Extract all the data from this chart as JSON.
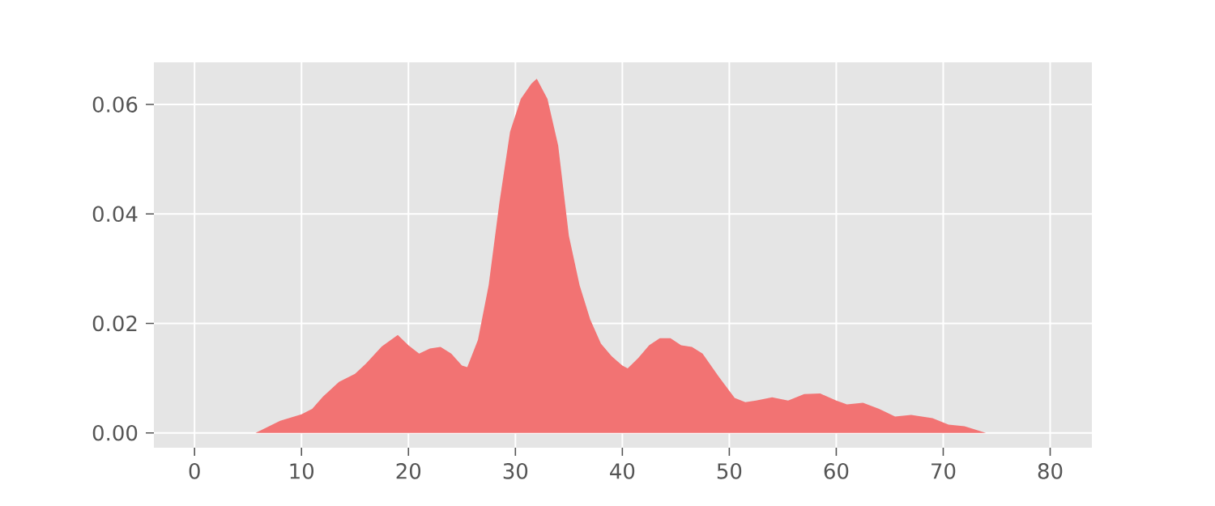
{
  "chart_data": {
    "type": "area",
    "color": "#f27373",
    "grid": true,
    "xlim": [
      -3.8,
      83.9
    ],
    "ylim": [
      -0.0027,
      0.0677
    ],
    "xticks": [
      0,
      10,
      20,
      30,
      40,
      50,
      60,
      70,
      80
    ],
    "yticks": [
      {
        "value": 0,
        "label": "0.00"
      },
      0.02,
      0.04,
      0.06
    ],
    "x": [
      5.7,
      8,
      10,
      11,
      12,
      13.5,
      15,
      16,
      17.5,
      19,
      20,
      21,
      22,
      23,
      24,
      25,
      25.5,
      26.5,
      27.5,
      28.5,
      29.5,
      30.5,
      31.5,
      32,
      33,
      34,
      35,
      36,
      37,
      38,
      39,
      40,
      40.5,
      41.5,
      42.5,
      43.5,
      44.5,
      45.5,
      46.5,
      47.5,
      49,
      50.5,
      51.5,
      52.5,
      54,
      55.5,
      57,
      58.5,
      60,
      61,
      62.5,
      64,
      65.5,
      67,
      69,
      70.5,
      72,
      74
    ],
    "values": [
      0,
      0.0022,
      0.0034,
      0.0044,
      0.0066,
      0.0093,
      0.0108,
      0.0126,
      0.0158,
      0.0179,
      0.016,
      0.0145,
      0.0154,
      0.0157,
      0.0145,
      0.0123,
      0.012,
      0.017,
      0.027,
      0.042,
      0.055,
      0.061,
      0.0638,
      0.0647,
      0.061,
      0.0525,
      0.036,
      0.027,
      0.0207,
      0.0163,
      0.014,
      0.0123,
      0.0118,
      0.0137,
      0.016,
      0.0173,
      0.0173,
      0.016,
      0.0157,
      0.0145,
      0.0103,
      0.0064,
      0.0056,
      0.0059,
      0.0065,
      0.0059,
      0.0071,
      0.0072,
      0.0059,
      0.0052,
      0.0055,
      0.0044,
      0.003,
      0.0033,
      0.0027,
      0.0015,
      0.0012,
      0
    ]
  }
}
